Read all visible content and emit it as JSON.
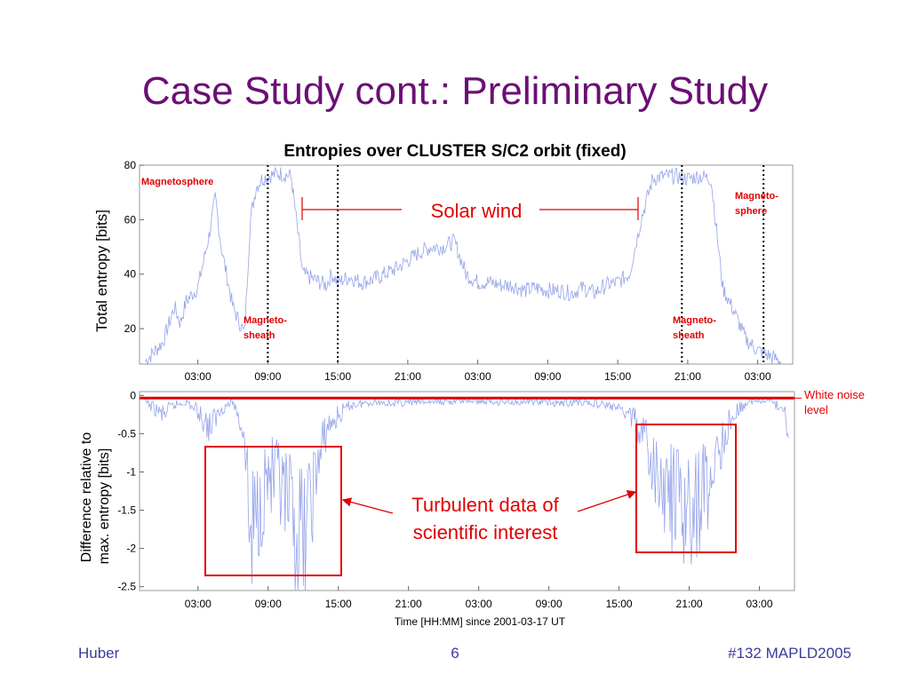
{
  "slide": {
    "title": "Case Study cont.: Preliminary Study",
    "footer_left": "Huber",
    "footer_center": "6",
    "footer_right": "#132 MAPLD2005"
  },
  "colors": {
    "title": "#6b0f74",
    "annotation": "#e00000",
    "data": "#8f9fe8",
    "footer": "#3a3aa0"
  },
  "chart_data": [
    {
      "type": "line",
      "title": "Entropies over CLUSTER S/C2 orbit (fixed)",
      "ylabel": "Total entropy [bits]",
      "xlabel": "",
      "x_ticks": [
        "03:00",
        "09:00",
        "15:00",
        "21:00",
        "03:00",
        "09:00",
        "15:00",
        "21:00",
        "03:00"
      ],
      "y_ticks": [
        "20",
        "40",
        "60",
        "80"
      ],
      "ylim": [
        7,
        80
      ],
      "xlim_hours": [
        -2,
        54
      ],
      "series": [
        {
          "x_hours": [
            -1.5,
            0,
            1,
            1.5,
            2,
            3,
            4,
            4.5,
            5,
            6,
            7,
            7.5,
            8,
            8.5,
            9,
            10,
            11,
            12,
            13,
            14,
            14.5,
            15,
            16,
            17,
            18,
            19,
            20,
            21,
            22,
            23,
            24,
            25,
            26,
            27,
            28,
            29,
            30,
            31,
            32,
            33,
            34,
            35,
            36,
            37,
            38,
            39,
            40,
            41,
            42,
            43,
            44,
            45,
            46,
            47,
            48,
            49,
            50,
            51,
            52,
            53
          ],
          "values": [
            8,
            15,
            28,
            22,
            30,
            35,
            55,
            68,
            50,
            28,
            18,
            60,
            72,
            75,
            76,
            77,
            76,
            40,
            38,
            36,
            40,
            37,
            39,
            37,
            38,
            40,
            42,
            45,
            48,
            50,
            50,
            52,
            40,
            37,
            37,
            36,
            36,
            34,
            35,
            34,
            34,
            33,
            35,
            33,
            36,
            37,
            40,
            60,
            75,
            76,
            76,
            75,
            76,
            75,
            35,
            26,
            16,
            12,
            10,
            8
          ]
        }
      ],
      "vertical_lines": [
        "09:00",
        "15:00",
        "20:30",
        "03:30"
      ],
      "annotations": [
        "Magnetosphere",
        "Magneto-",
        "sheath",
        "Magneto-",
        "sheath",
        "Magneto-",
        "sphere",
        "Solar wind"
      ]
    },
    {
      "type": "line",
      "title": "",
      "ylabel": "Difference relative to max. entropy [bits]",
      "ylabel_lines": [
        "Difference relative to",
        "max. entropy [bits]"
      ],
      "xlabel": "Time [HH:MM] since 2001-03-17 UT",
      "x_ticks": [
        "03:00",
        "09:00",
        "15:00",
        "21:00",
        "03:00",
        "09:00",
        "15:00",
        "21:00",
        "03:00"
      ],
      "y_ticks": [
        "0",
        "-0.5",
        "-1",
        "-1.5",
        "-2",
        "-2.5"
      ],
      "ylim": [
        -2.55,
        0.05
      ],
      "xlim_hours": [
        -2,
        54
      ],
      "series": [
        {
          "x_hours": [
            -1.5,
            0,
            1,
            2,
            3,
            4,
            5,
            6,
            7,
            7.5,
            8,
            9,
            10,
            11,
            12,
            13,
            14,
            16,
            18,
            20,
            22,
            24,
            26,
            28,
            30,
            32,
            34,
            36,
            38,
            40,
            41,
            42,
            43,
            44,
            45,
            46,
            47,
            48,
            49,
            50,
            51,
            52,
            53,
            53.5
          ],
          "values": [
            -0.1,
            -0.3,
            -0.15,
            -0.1,
            -0.25,
            -0.5,
            -0.2,
            -0.1,
            -0.6,
            -2.35,
            -1.8,
            -1.2,
            -1.5,
            -2.0,
            -2.25,
            -1.3,
            -0.5,
            -0.15,
            -0.1,
            -0.12,
            -0.1,
            -0.1,
            -0.08,
            -0.1,
            -0.1,
            -0.1,
            -0.12,
            -0.1,
            -0.15,
            -0.3,
            -0.6,
            -1.2,
            -1.5,
            -1.7,
            -1.85,
            -1.6,
            -1.2,
            -0.6,
            -0.25,
            -0.1,
            -0.08,
            -0.1,
            -0.2,
            -0.5
          ]
        }
      ],
      "reference_line": {
        "name": "White noise",
        "value": 0
      },
      "annotations": [
        "White noise",
        "level",
        "Turbulent data of",
        "scientific interest"
      ]
    }
  ]
}
